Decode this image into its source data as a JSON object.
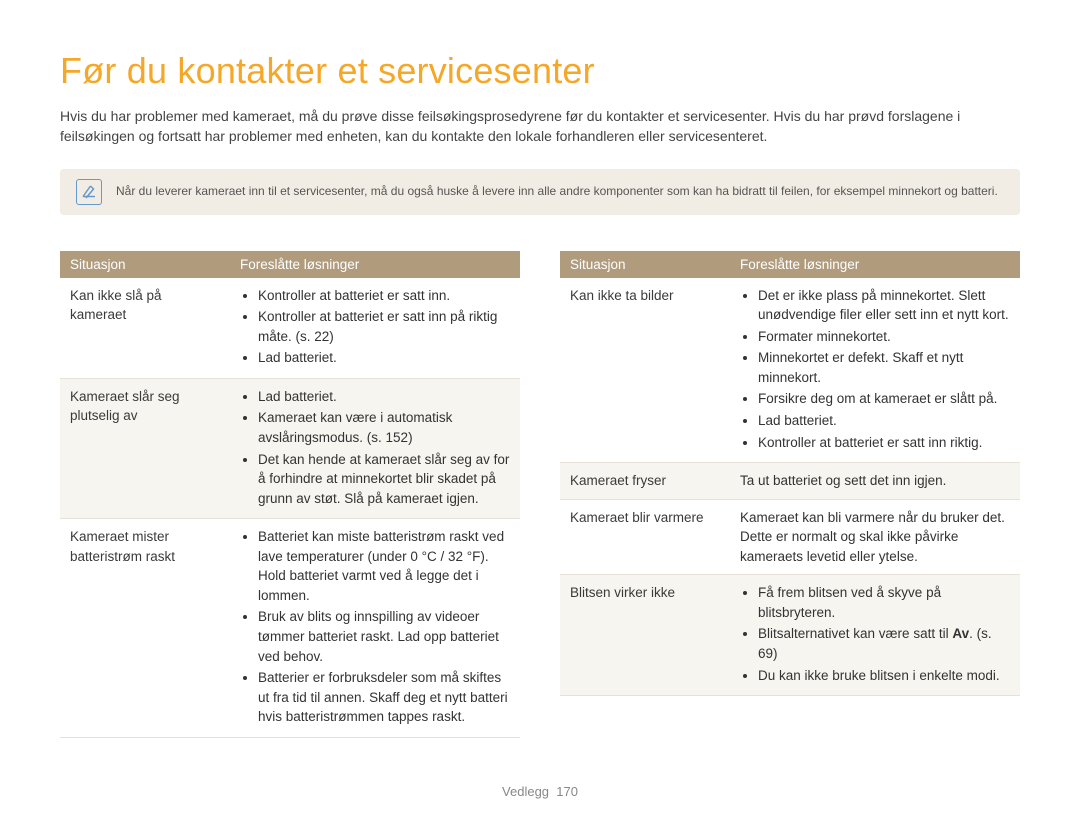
{
  "title": "Før du kontakter et servicesenter",
  "intro": "Hvis du har problemer med kameraet, må du prøve disse feilsøkingsprosedyrene før du kontakter et servicesenter. Hvis du har prøvd forslagene i feilsøkingen og fortsatt har problemer med enheten, kan du kontakte den lokale forhandleren eller servicesenteret.",
  "note": "Når du leverer kameraet inn til et servicesenter, må du også huske å levere inn alle andre komponenter som kan ha bidratt til feilen, for eksempel minnekort og batteri.",
  "headers": {
    "situation": "Situasjon",
    "solutions": "Foreslåtte løsninger"
  },
  "left": [
    {
      "situation": "Kan ikke slå på kameraet",
      "solutions": [
        "Kontroller at batteriet er satt inn.",
        "Kontroller at batteriet er satt inn på riktig måte. (s. 22)",
        "Lad batteriet."
      ]
    },
    {
      "situation": "Kameraet slår seg plutselig av",
      "solutions": [
        "Lad batteriet.",
        "Kameraet kan være i automatisk avslåringsmodus. (s. 152)",
        "Det kan hende at kameraet slår seg av for å forhindre at minnekortet blir skadet på grunn av støt. Slå på kameraet igjen."
      ]
    },
    {
      "situation": "Kameraet mister batteristrøm raskt",
      "solutions": [
        "Batteriet kan miste batteristrøm raskt ved lave temperaturer (under 0 °C / 32 °F). Hold batteriet varmt ved å legge det i lommen.",
        "Bruk av blits og innspilling av videoer tømmer batteriet raskt. Lad opp batteriet ved behov.",
        "Batterier er forbruksdeler som må skiftes ut fra tid til annen. Skaff deg et nytt batteri hvis batteristrømmen tappes raskt."
      ]
    }
  ],
  "right": [
    {
      "situation": "Kan ikke ta bilder",
      "solutions": [
        "Det er ikke plass på minnekortet. Slett unødvendige filer eller sett inn et nytt kort.",
        "Formater minnekortet.",
        "Minnekortet er defekt. Skaff et nytt minnekort.",
        "Forsikre deg om at kameraet er slått på.",
        "Lad batteriet.",
        "Kontroller at batteriet er satt inn riktig."
      ]
    },
    {
      "situation": "Kameraet fryser",
      "plain": "Ta ut batteriet og sett det inn igjen."
    },
    {
      "situation": "Kameraet blir varmere",
      "plain": "Kameraet kan bli varmere når du bruker det. Dette er normalt og skal ikke påvirke kameraets levetid eller ytelse."
    },
    {
      "situation": "Blitsen virker ikke",
      "solutions_html": [
        "Få frem blitsen ved å skyve på blitsbryteren.",
        "Blitsalternativet kan være satt til <b>Av</b>. (s. 69)",
        "Du kan ikke bruke blitsen i enkelte modi."
      ]
    }
  ],
  "footer": {
    "label": "Vedlegg",
    "page": "170"
  },
  "colors": {
    "accent": "#f5a728",
    "table_header_bg": "#b09b7d",
    "note_bg": "#f2ede4",
    "row_alt_bg": "#f7f5f0",
    "note_icon": "#6699cc"
  }
}
